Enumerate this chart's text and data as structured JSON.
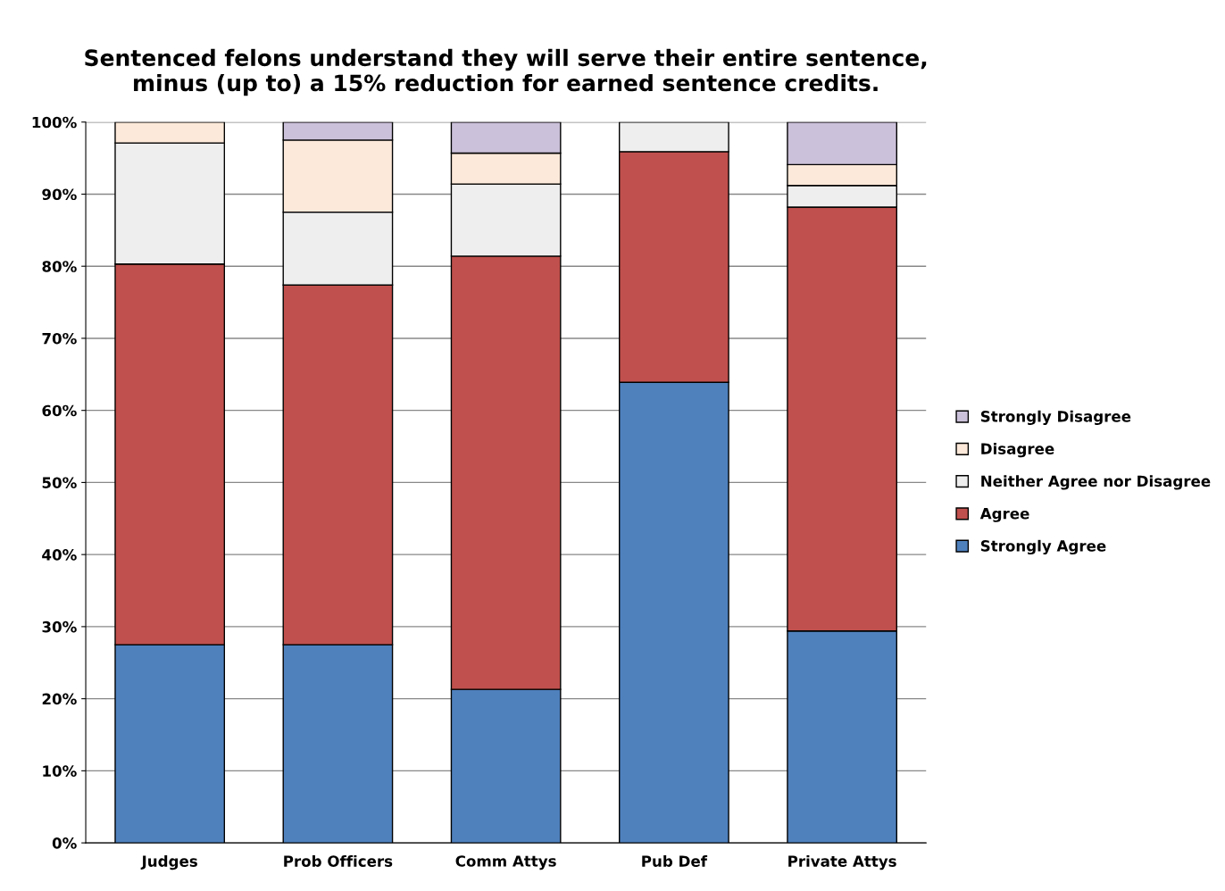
{
  "chart_data": {
    "type": "bar",
    "stacked": true,
    "title": "Sentenced felons understand they will serve their entire sentence,\nminus (up to) a 15% reduction for earned sentence credits.",
    "categories": [
      "Judges",
      "Prob Officers",
      "Comm Attys",
      "Pub Def",
      "Private Attys"
    ],
    "series": [
      {
        "name": "Strongly Agree",
        "color": "#4f81bd",
        "values": [
          27.5,
          27.5,
          21.3,
          63.9,
          29.4
        ]
      },
      {
        "name": "Agree",
        "color": "#c0504d",
        "values": [
          52.8,
          49.9,
          60.1,
          32,
          58.8
        ]
      },
      {
        "name": "Neither Agree nor Disagree",
        "color": "#eeeeee",
        "values": [
          16.8,
          10.1,
          10,
          4.1,
          3
        ]
      },
      {
        "name": "Disagree",
        "color": "#fde9d9",
        "values": [
          2.9,
          10,
          4.3,
          0,
          2.9
        ]
      },
      {
        "name": "Strongly Disagree",
        "color": "#ccc1da",
        "values": [
          0,
          2.5,
          4.3,
          0,
          5.9
        ]
      }
    ],
    "ylim": [
      0,
      100
    ],
    "yticks": [
      {
        "value": 0,
        "label": "0%"
      },
      {
        "value": 10,
        "label": "10%"
      },
      {
        "value": 20,
        "label": "20%"
      },
      {
        "value": 30,
        "label": "30%"
      },
      {
        "value": 40,
        "label": "40%"
      },
      {
        "value": 50,
        "label": "50%"
      },
      {
        "value": 60,
        "label": "60%"
      },
      {
        "value": 70,
        "label": "70%"
      },
      {
        "value": 80,
        "label": "80%"
      },
      {
        "value": 90,
        "label": "90%"
      },
      {
        "value": 100,
        "label": "100%"
      }
    ],
    "grid": "y",
    "legend": "right"
  }
}
